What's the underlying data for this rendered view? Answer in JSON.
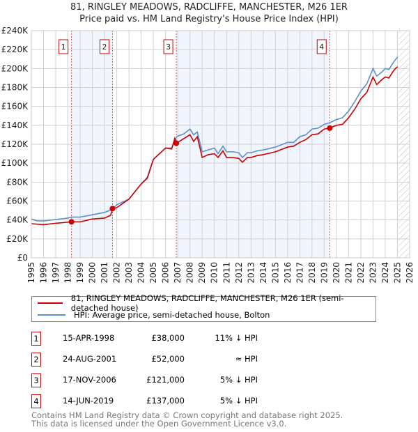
{
  "title_line1": "81, RINGLEY MEADOWS, RADCLIFFE, MANCHESTER, M26 1ER",
  "title_line2": "Price paid vs. HM Land Registry's House Price Index (HPI)",
  "chart_data": {
    "type": "line",
    "title": "81, RINGLEY MEADOWS, RADCLIFFE, MANCHESTER, M26 1ER — Price paid vs. HM Land Registry's House Price Index (HPI)",
    "xlim": [
      1995,
      2026
    ],
    "ylim": [
      0,
      240000
    ],
    "x_ticks": [
      "1995",
      "1996",
      "1997",
      "1998",
      "1999",
      "2000",
      "2001",
      "2002",
      "2003",
      "2004",
      "2005",
      "2006",
      "2007",
      "2008",
      "2009",
      "2010",
      "2011",
      "2012",
      "2013",
      "2014",
      "2015",
      "2016",
      "2017",
      "2018",
      "2019",
      "2020",
      "2021",
      "2022",
      "2023",
      "2024",
      "2025",
      "2026"
    ],
    "y_ticks": [
      "£0",
      "£20K",
      "£40K",
      "£60K",
      "£80K",
      "£100K",
      "£120K",
      "£140K",
      "£160K",
      "£180K",
      "£200K",
      "£220K",
      "£240K"
    ],
    "grid": true,
    "legend_placement": "below",
    "colors": {
      "property": "#cc0000",
      "hpi": "#5b8fd1"
    },
    "series": [
      {
        "name": "81, RINGLEY MEADOWS, RADCLIFFE, MANCHESTER, M26 1ER (semi-detached house)",
        "color": "#cc0000",
        "x": [
          1995,
          1996,
          1997,
          1998.29,
          1999,
          2000,
          2001,
          2001.5,
          2001.65,
          2002,
          2003,
          2004,
          2004.5,
          2005,
          2005.5,
          2006,
          2006.5,
          2006.75,
          2006.88,
          2007.5,
          2008,
          2008.3,
          2008.6,
          2009,
          2009.5,
          2010,
          2010.3,
          2010.7,
          2011,
          2011.5,
          2012,
          2012.3,
          2012.7,
          2013,
          2013.5,
          2014,
          2015,
          2016,
          2016.5,
          2017,
          2017.5,
          2018,
          2018.5,
          2019,
          2019.45,
          2020,
          2020.5,
          2021,
          2021.5,
          2022,
          2022.5,
          2023,
          2023.3,
          2023.7,
          2024,
          2024.3,
          2024.7,
          2025
        ],
        "y": [
          36000,
          35000,
          36500,
          38000,
          38000,
          41000,
          42000,
          45000,
          52000,
          53000,
          62000,
          78000,
          84000,
          104000,
          110000,
          116000,
          115000,
          126000,
          121000,
          126000,
          130000,
          123000,
          128000,
          106000,
          109000,
          110000,
          106000,
          113000,
          106000,
          106000,
          105000,
          101000,
          106000,
          106000,
          108000,
          109000,
          112000,
          117000,
          118000,
          122000,
          125000,
          130000,
          131000,
          136000,
          137000,
          140000,
          141000,
          148000,
          157000,
          168000,
          175000,
          191000,
          183000,
          188000,
          191000,
          190000,
          198000,
          202000
        ]
      },
      {
        "name": "HPI: Average price, semi-detached house, Bolton",
        "color": "#5b8fd1",
        "x": [
          1995,
          1995.5,
          1996,
          1997,
          1998,
          1998.3,
          1999,
          2000,
          2001,
          2001.6,
          2002,
          2003,
          2004,
          2004.5,
          2005,
          2005.5,
          2006,
          2006.5,
          2006.9,
          2007.5,
          2008,
          2008.3,
          2008.6,
          2009,
          2009.5,
          2010,
          2010.3,
          2010.7,
          2011,
          2011.5,
          2012,
          2012.3,
          2012.7,
          2013,
          2013.5,
          2014,
          2015,
          2016,
          2016.5,
          2017,
          2017.5,
          2018,
          2018.5,
          2019,
          2019.5,
          2020,
          2020.5,
          2021,
          2021.5,
          2022,
          2022.5,
          2023,
          2023.3,
          2023.7,
          2024,
          2024.3,
          2024.7,
          2025
        ],
        "y": [
          41000,
          39000,
          39000,
          40500,
          42000,
          43000,
          43000,
          45500,
          48000,
          51000,
          56000,
          62000,
          78000,
          85000,
          104000,
          110000,
          116000,
          116000,
          128000,
          131000,
          136000,
          130000,
          133000,
          112000,
          114000,
          116000,
          110000,
          118000,
          112000,
          112000,
          111000,
          106000,
          111000,
          111000,
          113000,
          114000,
          117000,
          122000,
          122000,
          128000,
          130000,
          136000,
          137000,
          141000,
          143000,
          146000,
          148000,
          155000,
          165000,
          176000,
          184000,
          200000,
          192000,
          196000,
          200000,
          199000,
          207000,
          212000
        ]
      }
    ],
    "sales": [
      {
        "id": "1",
        "x": 1998.29,
        "date": "15-APR-1998",
        "price": "£38,000",
        "value": 38000,
        "hpi_rel": "11% ↓ HPI"
      },
      {
        "id": "2",
        "x": 2001.65,
        "date": "24-AUG-2001",
        "price": "£52,000",
        "value": 52000,
        "hpi_rel": "≈ HPI"
      },
      {
        "id": "3",
        "x": 2006.88,
        "date": "17-NOV-2006",
        "price": "£121,000",
        "value": 121000,
        "hpi_rel": "5% ↓ HPI"
      },
      {
        "id": "4",
        "x": 2019.45,
        "date": "14-JUN-2019",
        "price": "£137,000",
        "value": 137000,
        "hpi_rel": "5% ↓ HPI"
      }
    ],
    "shaded_ranges": [
      [
        1998.29,
        2001.65
      ],
      [
        2006.88,
        2019.45
      ]
    ],
    "forecast_hatch_from": 2025.1
  },
  "footer_line1": "Contains HM Land Registry data © Crown copyright and database right 2025.",
  "footer_line2": "This data is licensed under the Open Government Licence v3.0."
}
